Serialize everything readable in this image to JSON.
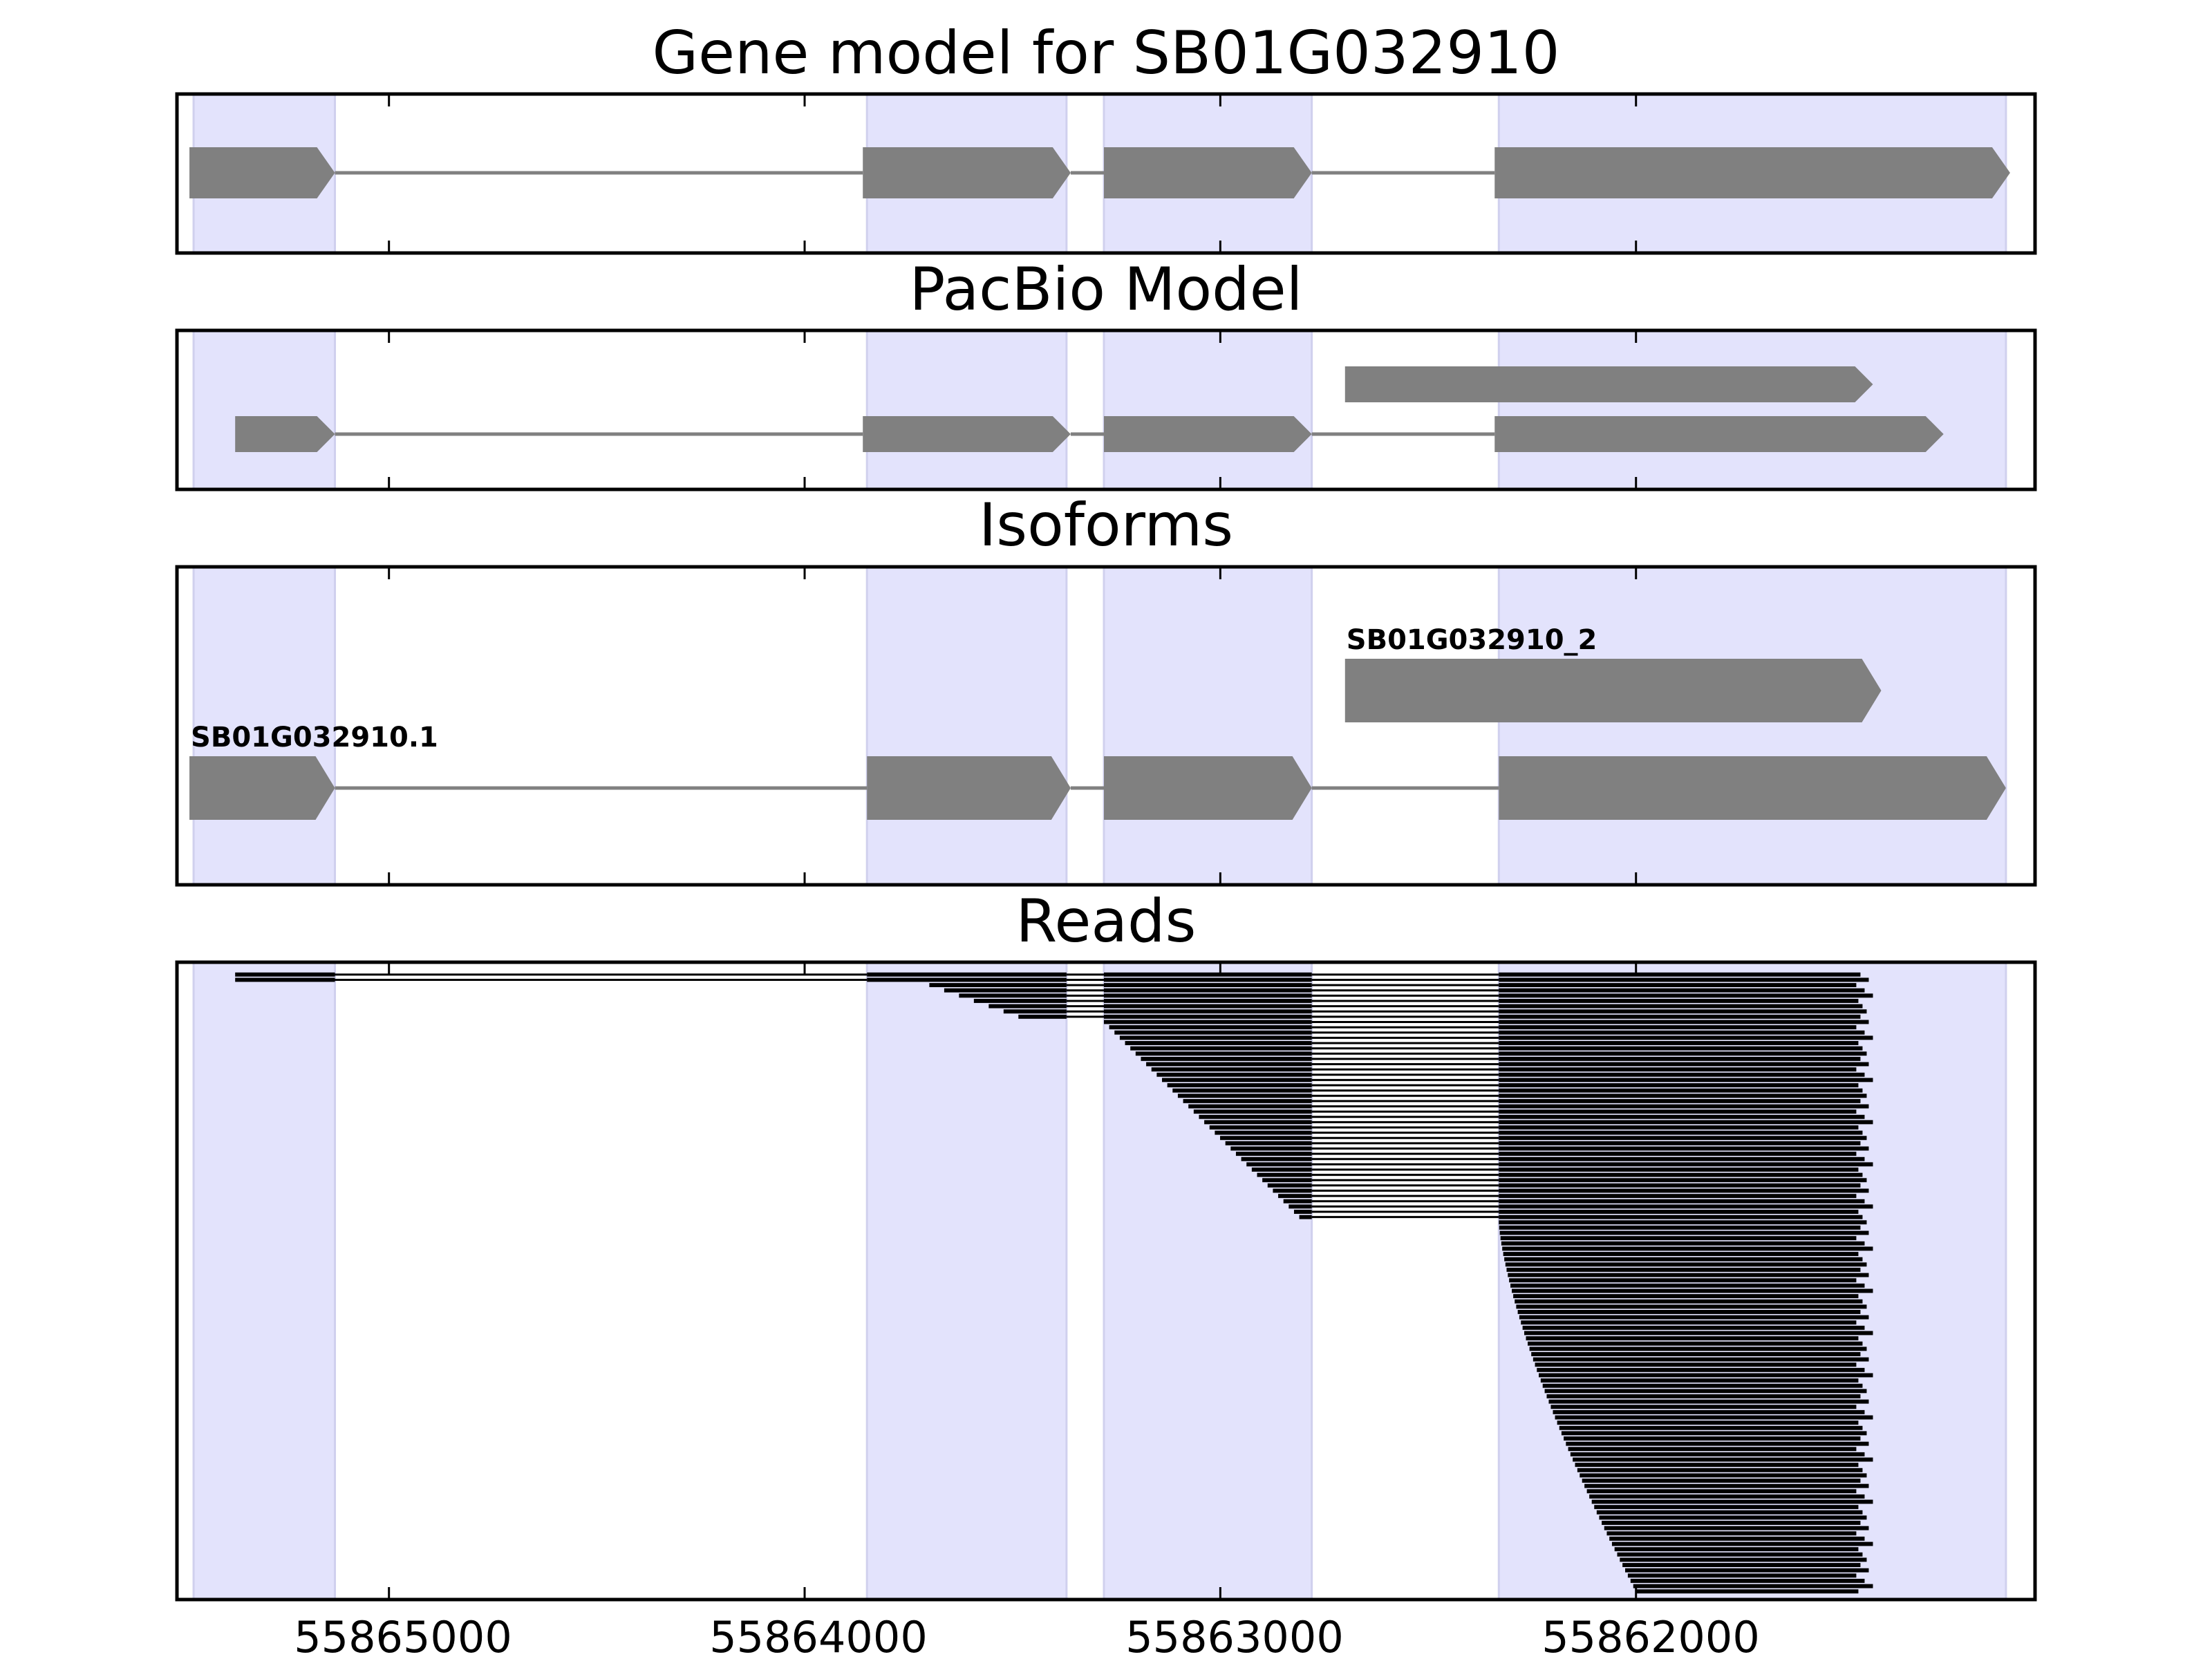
{
  "chart_data": {
    "type": "gene-track",
    "x_axis": {
      "direction": "reversed",
      "xlim": [
        55865510,
        55861040
      ],
      "ticks": [
        55865000,
        55864000,
        55863000,
        55862000
      ],
      "tick_labels": [
        "55865000",
        "55864000",
        "55863000",
        "55862000"
      ]
    },
    "exon_regions": [
      [
        55865470,
        55865130
      ],
      [
        55863850,
        55863370
      ],
      [
        55863280,
        55862780
      ],
      [
        55862330,
        55861110
      ]
    ],
    "panels": [
      {
        "title": "Gene model for SB01G032910",
        "transcripts": [
          {
            "label": "",
            "exons": [
              [
                55865480,
                55865130
              ],
              [
                55863860,
                55863360
              ],
              [
                55863280,
                55862780
              ],
              [
                55862340,
                55861100
              ]
            ]
          }
        ]
      },
      {
        "title": "PacBio Model",
        "transcripts": [
          {
            "label": "",
            "exons": [
              [
                55862700,
                55861430
              ]
            ]
          },
          {
            "label": "",
            "exons": [
              [
                55865370,
                55865130
              ],
              [
                55863860,
                55863360
              ],
              [
                55863280,
                55862780
              ],
              [
                55862340,
                55861260
              ]
            ]
          }
        ]
      },
      {
        "title": "Isoforms",
        "transcripts": [
          {
            "label": "SB01G032910_2",
            "exons": [
              [
                55862700,
                55861410
              ]
            ]
          },
          {
            "label": "SB01G032910.1",
            "exons": [
              [
                55865480,
                55865130
              ],
              [
                55863850,
                55863360
              ],
              [
                55863280,
                55862780
              ],
              [
                55862330,
                55861110
              ]
            ]
          }
        ]
      },
      {
        "title": "Reads",
        "read_count": 118,
        "reads_structure": [
          "reads 1-2: exon1 (from ~55865370) to exon4 (to ~55861460)",
          "reads 3-46: start inside exon2 or exon3, spliced to exon4",
          "reads 47-118: start inside exon4 near 55862330, end ~55861430-55861470"
        ]
      }
    ],
    "colors": {
      "exon_region_fill": "#e3e3fc",
      "model_feature": "#808080",
      "read": "#000000"
    }
  }
}
